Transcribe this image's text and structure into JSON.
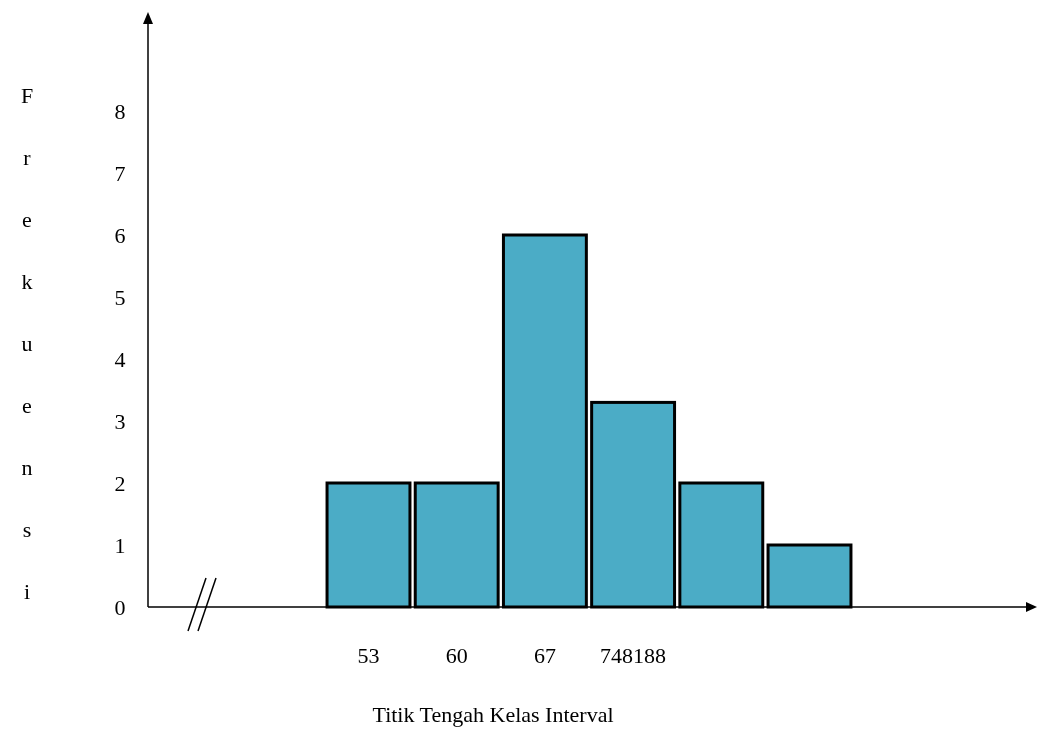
{
  "chart_data": {
    "type": "bar",
    "xlabel": "Titik Tengah Kelas Interval",
    "ylabel": "Frekuensi",
    "categories": [
      null,
      null,
      "53",
      "60",
      "67",
      "748188",
      null,
      null,
      null,
      null
    ],
    "values": [
      null,
      null,
      2,
      2,
      6,
      3.3,
      2,
      1,
      null,
      null
    ],
    "color": "#4bacc6",
    "ylim": [
      0,
      9.5
    ],
    "yticks": [
      0,
      1,
      2,
      3,
      4,
      5,
      6,
      7,
      8
    ],
    "grid": false,
    "legend": false
  }
}
